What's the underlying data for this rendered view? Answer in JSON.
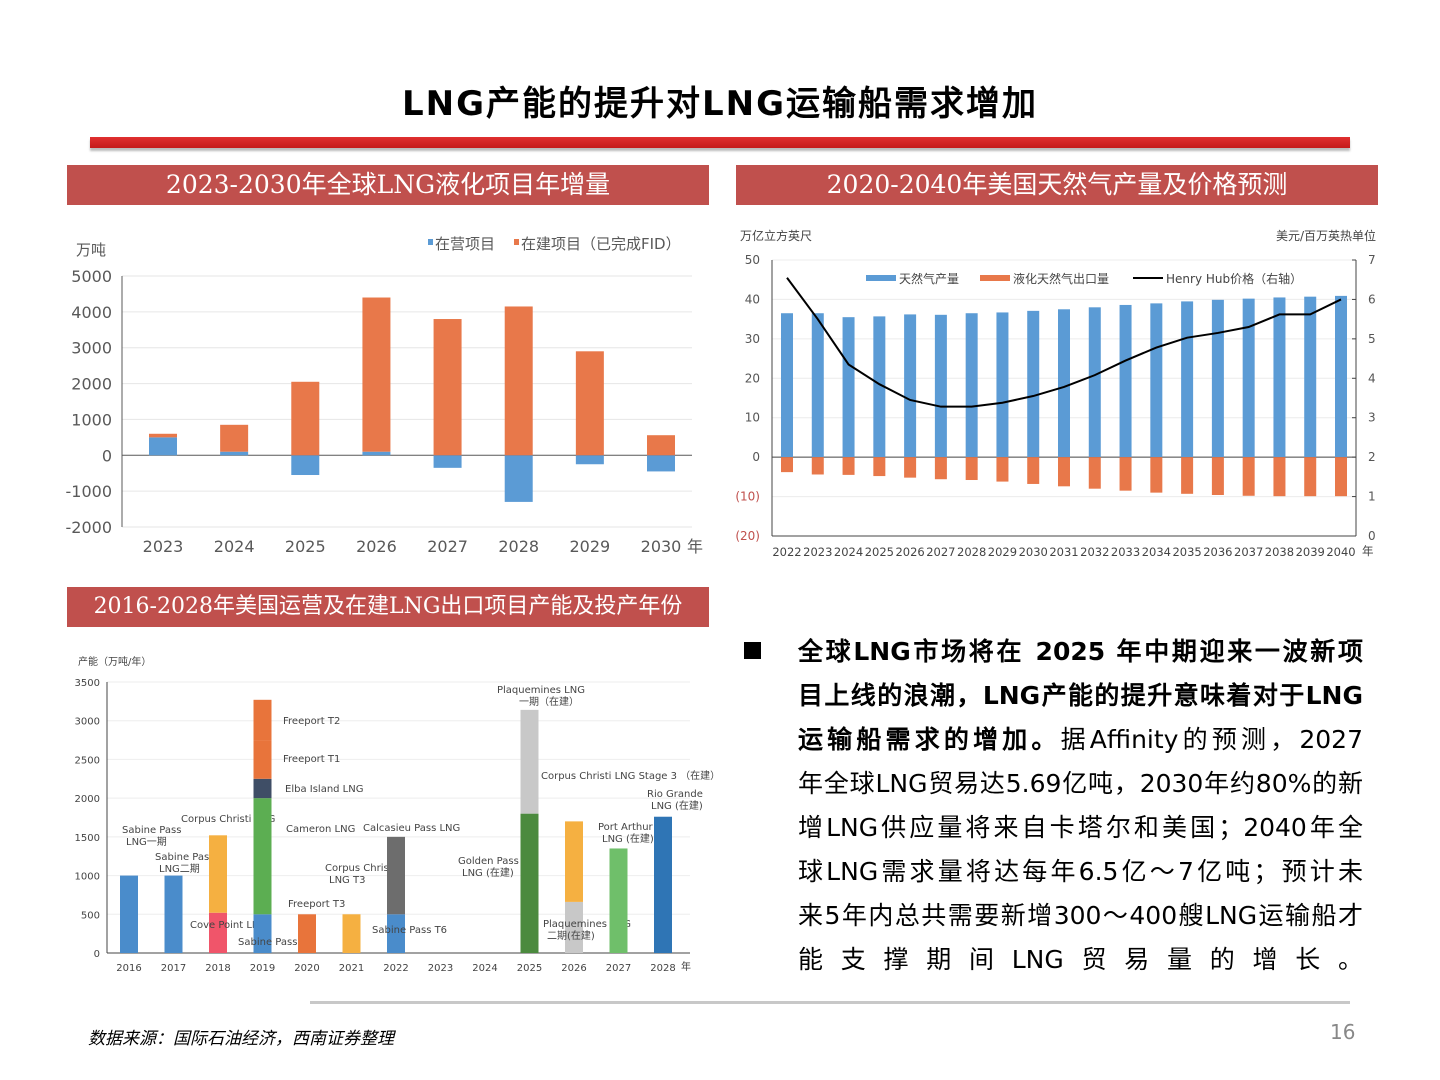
{
  "page": {
    "title": "LNG产能的提升对LNG运输船需求增加",
    "panel_titles": [
      "2023-2030年全球LNG液化项目年增量",
      "2020-2040年美国天然气产量及价格预测",
      "2016-2028年美国运营及在建LNG出口项目产能及投产年份"
    ],
    "paragraph_lines": [
      "全球LNG市场将在 2025 年中期迎来一波新项",
      "目上线的浪潮，LNG产能的提升意味着对于LNG",
      "运输船需求的增加。据Affinity的预测，2027",
      "年全球LNG贸易达5.69亿吨，2030年约80%的新",
      "增LNG供应量将来自卡塔尔和美国；2040年全",
      "球LNG需求量将达每年6.5亿～7亿吨；预计未",
      "来5年内总共需要新增300～400艘LNG运输船才",
      "能支撑期间LNG贸易量的增长。"
    ],
    "bold_prefix_lines": 3,
    "source": "数据来源：国际石油经济，西南证券整理",
    "page_number": "16",
    "colors": {
      "header": "#c0504d",
      "title_bar": "#d42a2a"
    }
  },
  "chart_data": [
    {
      "type": "bar",
      "stacked": true,
      "ylabel": "万吨",
      "xlabel_suffix": "年",
      "categories": [
        "2023",
        "2024",
        "2025",
        "2026",
        "2027",
        "2028",
        "2029",
        "2030"
      ],
      "series": [
        {
          "name": "在营项目",
          "color": "#5b9bd5",
          "values": [
            500,
            100,
            -550,
            100,
            -350,
            -1300,
            -250,
            -450
          ]
        },
        {
          "name": "在建项目（已完成FID）",
          "color": "#e8784a",
          "values": [
            100,
            750,
            2050,
            4300,
            3800,
            4150,
            2900,
            560
          ]
        }
      ],
      "ylim": [
        -2000,
        5000
      ],
      "yticks": [
        "5000",
        "4000",
        "3000",
        "2000",
        "1000",
        "0",
        "-1000",
        "-2000"
      ],
      "grid": true,
      "legend": "top-right"
    },
    {
      "type": "bar+line",
      "ylabel_left": "万亿立方英尺",
      "ylabel_right": "美元/百万英热单位",
      "xlabel_suffix": "年",
      "categories": [
        "2022",
        "2023",
        "2024",
        "2025",
        "2026",
        "2027",
        "2028",
        "2029",
        "2030",
        "2031",
        "2032",
        "2033",
        "2034",
        "2035",
        "2036",
        "2037",
        "2038",
        "2039",
        "2040"
      ],
      "series": [
        {
          "name": "天然气产量",
          "type": "bar",
          "axis": "left",
          "color": "#5b9bd5",
          "values": [
            36.5,
            36.5,
            35.5,
            35.7,
            36.2,
            36.1,
            36.5,
            36.7,
            37.1,
            37.5,
            38.0,
            38.6,
            39.0,
            39.5,
            39.9,
            40.2,
            40.5,
            40.7,
            40.9
          ]
        },
        {
          "name": "液化天然气出口量",
          "type": "bar",
          "axis": "left",
          "color": "#e8784a",
          "values": [
            -3.8,
            -4.4,
            -4.5,
            -4.8,
            -5.2,
            -5.6,
            -5.8,
            -6.2,
            -6.8,
            -7.4,
            -8.0,
            -8.5,
            -9.0,
            -9.3,
            -9.6,
            -9.8,
            -9.9,
            -9.9,
            -9.9
          ]
        },
        {
          "name": "Henry Hub价格（右轴）",
          "type": "line",
          "axis": "right",
          "color": "#000000",
          "values": [
            6.55,
            5.5,
            4.35,
            3.85,
            3.45,
            3.28,
            3.28,
            3.38,
            3.55,
            3.78,
            4.08,
            4.45,
            4.78,
            5.03,
            5.15,
            5.3,
            5.62,
            5.62,
            6.0
          ]
        }
      ],
      "ylim_left": [
        -20,
        50
      ],
      "ylim_right": [
        0,
        7
      ],
      "yticks_left": [
        "50",
        "40",
        "30",
        "20",
        "10",
        "0",
        "(10)",
        "(20)"
      ],
      "yticks_right": [
        "7",
        "6",
        "5",
        "4",
        "3",
        "2",
        "1",
        "0"
      ],
      "negative_tick_color": "#c0504d",
      "grid": true,
      "legend": "top"
    },
    {
      "type": "bar",
      "stacked": true,
      "ylabel": "产能（万吨/年）",
      "xlabel_suffix": "年",
      "categories": [
        "2016",
        "2017",
        "2018",
        "2019",
        "2020",
        "2021",
        "2022",
        "2023",
        "2024",
        "2025",
        "2026",
        "2027",
        "2028"
      ],
      "ylim": [
        0,
        3500
      ],
      "yticks": [
        "3500",
        "3000",
        "2500",
        "2000",
        "1500",
        "1000",
        "500",
        "0"
      ],
      "grid": true,
      "segments": [
        {
          "year": "2016",
          "value": 1000,
          "color": "#4a8ccb",
          "label": "Sabine Pass\nLNG一期"
        },
        {
          "year": "2017",
          "value": 1000,
          "color": "#4a8ccb",
          "label": "Sabine Pass\nLNG二期"
        },
        {
          "year": "2018",
          "value": 520,
          "color": "#f0556a",
          "label": "Cove Point LNG"
        },
        {
          "year": "2018",
          "value": 1000,
          "color": "#f5b041",
          "label": "Corpus Christi LNG"
        },
        {
          "year": "2019",
          "value": 500,
          "color": "#4a8ccb",
          "label": "Sabine Pass T5"
        },
        {
          "year": "2019",
          "value": 1500,
          "color": "#5cae52",
          "label": "Cameron LNG"
        },
        {
          "year": "2019",
          "value": 250,
          "color": "#3f4e66",
          "label": "Elba Island LNG"
        },
        {
          "year": "2019",
          "value": 500,
          "color": "#e8743b",
          "label": "Freeport T1"
        },
        {
          "year": "2019",
          "value": 520,
          "color": "#e8743b",
          "label": "Freeport T2"
        },
        {
          "year": "2020",
          "value": 500,
          "color": "#e8743b",
          "label": "Freeport T3"
        },
        {
          "year": "2021",
          "value": 500,
          "color": "#f5b041",
          "label": "Corpus Christi\nLNG T3"
        },
        {
          "year": "2022",
          "value": 500,
          "color": "#4a8ccb",
          "label": "Sabine Pass T6"
        },
        {
          "year": "2022",
          "value": 1000,
          "color": "#6d6d6d",
          "label": "Calcasieu Pass LNG"
        },
        {
          "year": "2025",
          "value": 1800,
          "color": "#4b8a3e",
          "label": "Golden Pass\nLNG (在建)"
        },
        {
          "year": "2025",
          "value": 1340,
          "color": "#c8c8c8",
          "label": "Plaquemines LNG\n一期（在建）"
        },
        {
          "year": "2026",
          "value": 660,
          "color": "#c8c8c8",
          "label": "Plaquemines LNG\n二期(在建)"
        },
        {
          "year": "2026",
          "value": 1040,
          "color": "#f5b041",
          "label": "Corpus Christi LNG Stage 3 （在建）"
        },
        {
          "year": "2027",
          "value": 1350,
          "color": "#6fbf6a",
          "label": "Port Arthur\nLNG (在建)"
        },
        {
          "year": "2028",
          "value": 1760,
          "color": "#2f75b5",
          "label": "Rio Grande\nLNG (在建)"
        }
      ]
    }
  ]
}
